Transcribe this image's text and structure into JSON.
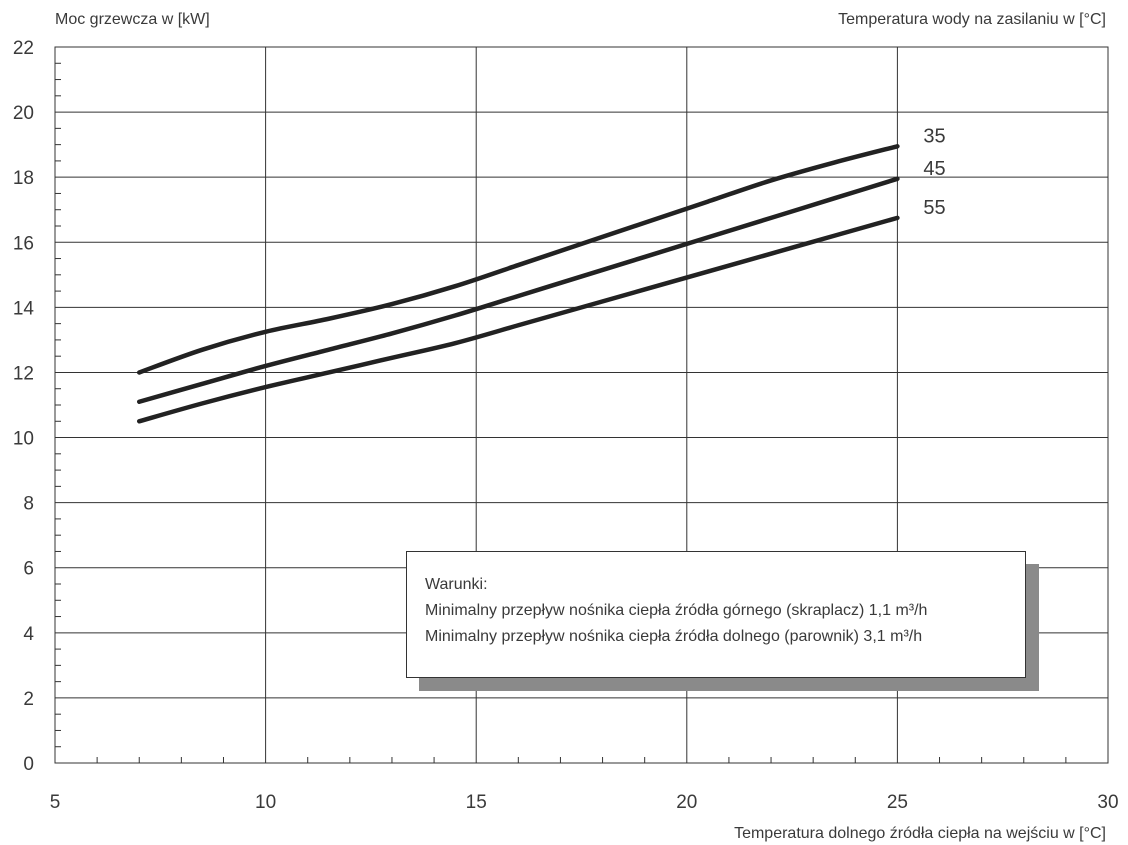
{
  "chart_data": {
    "type": "line",
    "y_axis_title": "Moc grzewcza w [kW]",
    "legend_title": "Temperatura wody na zasilaniu w [°C]",
    "x_axis_title": "Temperatura dolnego źródła ciepła na wejściu w [°C]",
    "xlim": [
      5,
      30
    ],
    "ylim": [
      0,
      22
    ],
    "x_ticks": [
      "5",
      "10",
      "15",
      "20",
      "25",
      "30"
    ],
    "y_ticks": [
      "0",
      "2",
      "4",
      "6",
      "8",
      "10",
      "12",
      "14",
      "16",
      "18",
      "20",
      "22"
    ],
    "grid": true,
    "series": [
      {
        "name": "35",
        "x": [
          7,
          8.5,
          10,
          11.5,
          13,
          14.5,
          16,
          17.5,
          19,
          20.5,
          22,
          23.5,
          25
        ],
        "y": [
          12.0,
          12.7,
          13.25,
          13.65,
          14.1,
          14.65,
          15.3,
          15.95,
          16.6,
          17.25,
          17.9,
          18.45,
          18.95
        ]
      },
      {
        "name": "45",
        "x": [
          7,
          8.5,
          10,
          11.5,
          13,
          14.5,
          16,
          17.5,
          19,
          20.5,
          22,
          23.5,
          25
        ],
        "y": [
          11.1,
          11.65,
          12.2,
          12.7,
          13.2,
          13.75,
          14.35,
          14.95,
          15.55,
          16.15,
          16.75,
          17.35,
          17.95
        ]
      },
      {
        "name": "55",
        "x": [
          7,
          8.5,
          10,
          11.5,
          13,
          14.5,
          16,
          17.5,
          19,
          20.5,
          22,
          23.5,
          25
        ],
        "y": [
          10.5,
          11.05,
          11.55,
          12.0,
          12.45,
          12.9,
          13.45,
          14.0,
          14.55,
          15.1,
          15.65,
          16.2,
          16.75
        ]
      }
    ]
  },
  "note": {
    "title": "Warunki:",
    "line1": "Minimalny przepływ nośnika ciepła źródła górnego (skraplacz) 1,1 m³/h",
    "line2": "Minimalny przepływ nośnika ciepła źródła dolnego (parownik) 3,1 m³/h"
  },
  "colors": {
    "line": "#222222",
    "grid": "#333333",
    "shadow": "#8a8a8a"
  }
}
